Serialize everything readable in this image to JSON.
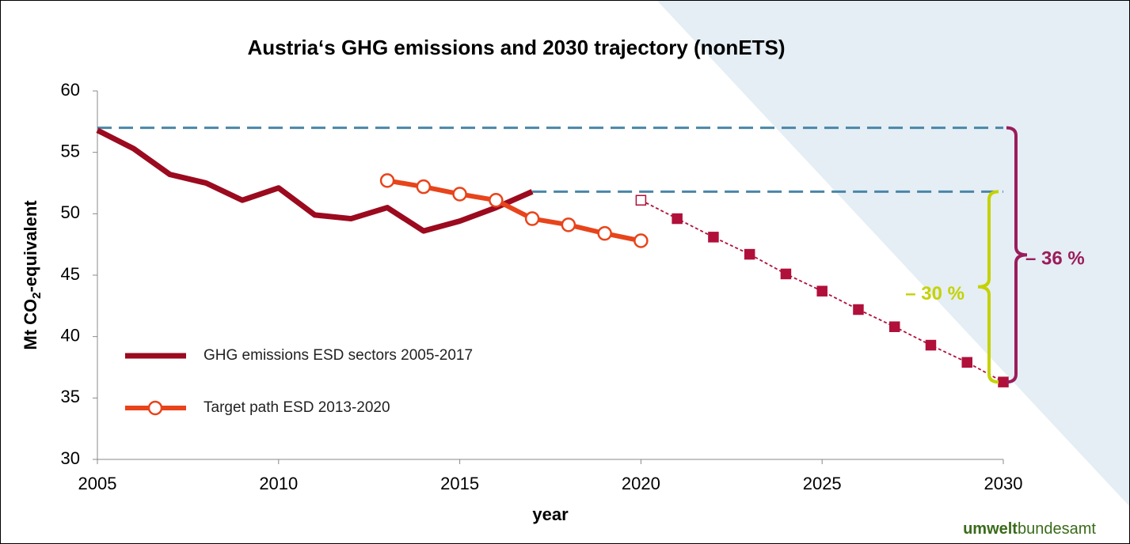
{
  "chart_data": {
    "type": "line",
    "title": "Austria‘s GHG emissions and 2030 trajectory (nonETS)",
    "x_label": "year",
    "y_label": {
      "before": "Mt CO",
      "sub": "2",
      "after": "-equivalent"
    },
    "xlim": [
      2005,
      2030
    ],
    "xticks": [
      2005,
      2010,
      2015,
      2020,
      2025,
      2030
    ],
    "ylim": [
      30,
      60
    ],
    "yticks": [
      30,
      35,
      40,
      45,
      50,
      55,
      60
    ],
    "series": [
      {
        "name": "GHG emissions ESD sectors 2005-2017",
        "color": "#9b0a1e",
        "x": [
          2005,
          2006,
          2007,
          2008,
          2009,
          2010,
          2011,
          2012,
          2013,
          2014,
          2015,
          2016,
          2017
        ],
        "values": [
          56.8,
          55.3,
          53.2,
          52.5,
          51.1,
          52.1,
          49.9,
          49.6,
          50.5,
          48.6,
          49.4,
          50.5,
          51.8
        ]
      },
      {
        "name": "Target path ESD 2013-2020",
        "color": "#e8441b",
        "x": [
          2013,
          2014,
          2015,
          2016,
          2017,
          2018,
          2019,
          2020
        ],
        "values": [
          52.7,
          52.2,
          51.6,
          51.1,
          49.6,
          49.1,
          48.4,
          47.8
        ]
      },
      {
        "color": "#b0103a",
        "x": [
          2020,
          2021,
          2022,
          2023,
          2024,
          2025,
          2026,
          2027,
          2028,
          2029,
          2030
        ],
        "values": [
          51.1,
          49.6,
          48.1,
          46.7,
          45.1,
          43.7,
          42.2,
          40.8,
          39.3,
          37.9,
          36.3
        ]
      }
    ],
    "reference_lines": [
      {
        "value": 57.0,
        "x_start": 2005,
        "color": "#4a86a8"
      },
      {
        "value": 51.8,
        "x_start": 2017,
        "color": "#4a86a8"
      }
    ],
    "annotations": [
      {
        "text": "– 36 %",
        "color": "#9b1c5c"
      },
      {
        "text": "– 30 %",
        "color": "#c5d200"
      }
    ]
  },
  "logo": {
    "bold": "umwelt",
    "regular": "bundesamt"
  }
}
